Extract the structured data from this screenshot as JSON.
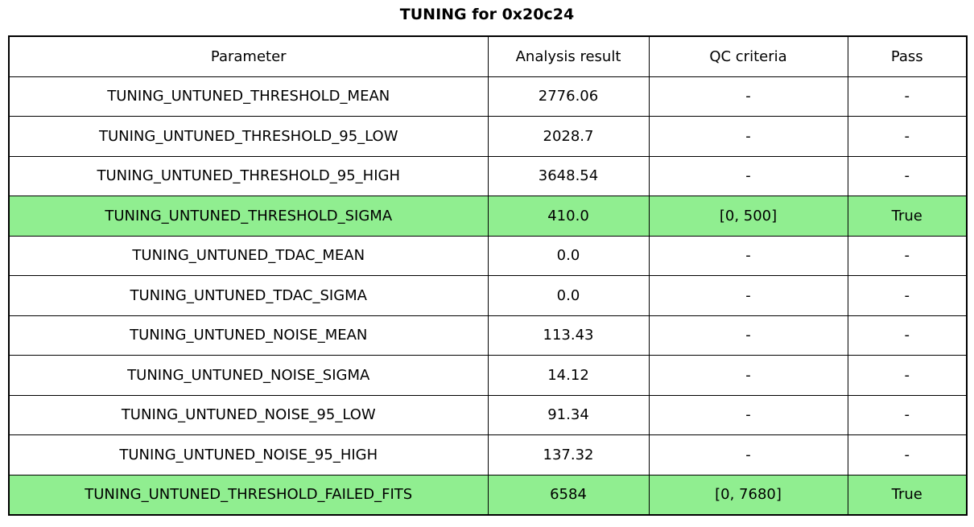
{
  "title": "TUNING for 0x20c24",
  "colors": {
    "pass_green": "#90EE90",
    "border": "#000000",
    "background": "#FFFFFF",
    "text": "#000000"
  },
  "chart_data": {
    "type": "table",
    "title": "TUNING for 0x20c24",
    "columns": [
      "Parameter",
      "Analysis result",
      "QC criteria",
      "Pass"
    ],
    "rows": [
      [
        "TUNING_UNTUNED_THRESHOLD_MEAN",
        "2776.06",
        "-",
        "-"
      ],
      [
        "TUNING_UNTUNED_THRESHOLD_95_LOW",
        "2028.7",
        "-",
        "-"
      ],
      [
        "TUNING_UNTUNED_THRESHOLD_95_HIGH",
        "3648.54",
        "-",
        "-"
      ],
      [
        "TUNING_UNTUNED_THRESHOLD_SIGMA",
        "410.0",
        "[0, 500]",
        "True"
      ],
      [
        "TUNING_UNTUNED_TDAC_MEAN",
        "0.0",
        "-",
        "-"
      ],
      [
        "TUNING_UNTUNED_TDAC_SIGMA",
        "0.0",
        "-",
        "-"
      ],
      [
        "TUNING_UNTUNED_NOISE_MEAN",
        "113.43",
        "-",
        "-"
      ],
      [
        "TUNING_UNTUNED_NOISE_SIGMA",
        "14.12",
        "-",
        "-"
      ],
      [
        "TUNING_UNTUNED_NOISE_95_LOW",
        "91.34",
        "-",
        "-"
      ],
      [
        "TUNING_UNTUNED_NOISE_95_HIGH",
        "137.32",
        "-",
        "-"
      ],
      [
        "TUNING_UNTUNED_THRESHOLD_FAILED_FITS",
        "6584",
        "[0, 7680]",
        "True"
      ]
    ],
    "highlighted_rows": [
      3,
      10
    ],
    "highlight_color": "#90EE90",
    "layout": "grid, all borders black, all cells center-aligned, title bold centered above table"
  }
}
